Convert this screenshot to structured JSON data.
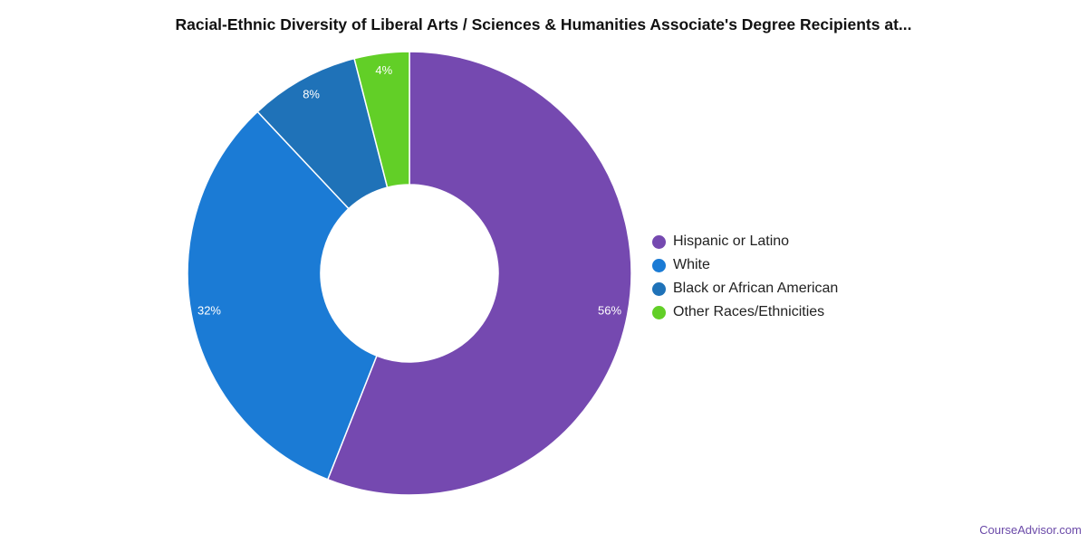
{
  "page": {
    "title": "Racial-Ethnic Diversity of Liberal Arts / Sciences & Humanities Associate's Degree Recipients at...",
    "watermark": "CourseAdvisor.com"
  },
  "chart_data": {
    "type": "pie",
    "donut": true,
    "title": "Racial-Ethnic Diversity of Liberal Arts / Sciences & Humanities Associate's Degree Recipients at...",
    "legend_position": "right",
    "slices": [
      {
        "label": "Hispanic or Latino",
        "value": 56,
        "display": "56%",
        "color": "#7549b0"
      },
      {
        "label": "White",
        "value": 32,
        "display": "32%",
        "color": "#1b7bd5"
      },
      {
        "label": "Black or African American",
        "value": 8,
        "display": "8%",
        "color": "#1f72b8"
      },
      {
        "label": "Other Races/Ethnicities",
        "value": 4,
        "display": "4%",
        "color": "#62cf27"
      }
    ]
  }
}
